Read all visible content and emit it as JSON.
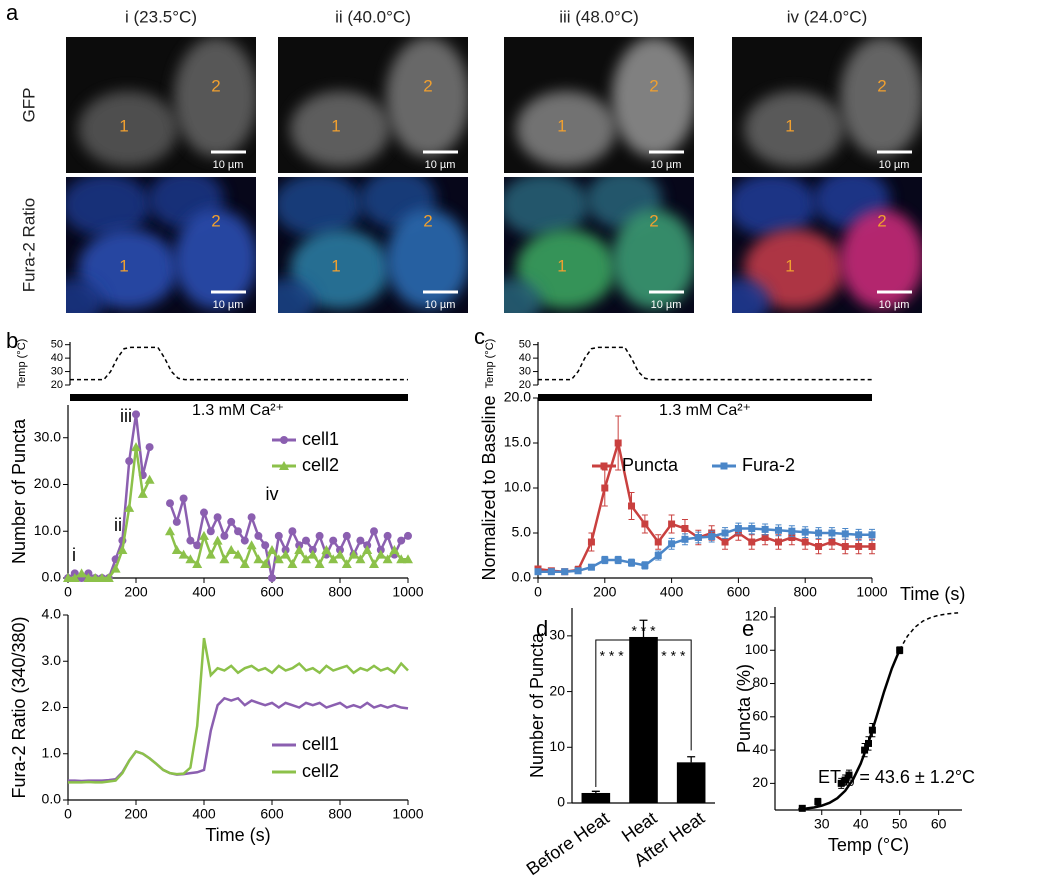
{
  "panel_labels": [
    "a",
    "b",
    "c",
    "d",
    "e"
  ],
  "panel_a": {
    "columns": [
      "i (23.5°C)",
      "ii (40.0°C)",
      "iii (48.0°C)",
      "iv (24.0°C)"
    ],
    "rows": [
      "GFP",
      "Fura-2 Ratio"
    ],
    "cells": [
      "1",
      "2"
    ],
    "scale_bar": "10 µm"
  },
  "chart_data": [
    {
      "type": "line",
      "ylabel": "Temp (°C)",
      "annotation": "1.3 mM Ca²⁺",
      "x": [
        0,
        100,
        120,
        140,
        160,
        180,
        260,
        280,
        300,
        320,
        340,
        1000
      ],
      "xlim": [
        0,
        1000
      ],
      "ylim": [
        20,
        52
      ],
      "yticks": [
        20,
        30,
        40,
        50
      ],
      "series": [
        {
          "color": "#000000",
          "dash": true,
          "values": [
            24,
            24,
            30,
            40,
            47,
            48,
            48,
            40,
            30,
            25,
            24,
            24
          ]
        }
      ]
    },
    {
      "type": "line",
      "ylabel": "Number of Puncta",
      "legend": "upper right",
      "annotations": [
        "i",
        "ii",
        "iii",
        "iv"
      ],
      "x": [
        0,
        20,
        40,
        60,
        80,
        100,
        120,
        140,
        160,
        180,
        200,
        220,
        240,
        260,
        280,
        300,
        320,
        340,
        360,
        380,
        400,
        420,
        440,
        460,
        480,
        500,
        520,
        540,
        560,
        580,
        600,
        620,
        640,
        660,
        680,
        700,
        720,
        740,
        760,
        780,
        800,
        820,
        840,
        860,
        880,
        900,
        920,
        940,
        960,
        980,
        1000
      ],
      "xlim": [
        0,
        1000
      ],
      "ylim": [
        0,
        37
      ],
      "xticks": [
        0,
        200,
        400,
        600,
        800,
        1000
      ],
      "yticks": [
        {
          "value": 0,
          "label": "0.0"
        },
        {
          "value": 10,
          "label": "10.0"
        },
        {
          "value": 20,
          "label": "20.0"
        },
        {
          "value": 30,
          "label": "30.0"
        }
      ],
      "series": [
        {
          "name": "cell1",
          "color": "#8b5fb0",
          "marker": "circle",
          "values": [
            0,
            1,
            0,
            1,
            0,
            0,
            0,
            4,
            8,
            25,
            35,
            22,
            28,
            null,
            null,
            16,
            12,
            17,
            8,
            7,
            14,
            10,
            13,
            9,
            12,
            10,
            8,
            13,
            9,
            7,
            0,
            9,
            6,
            10,
            7,
            8,
            6,
            9,
            5,
            8,
            6,
            9,
            5,
            8,
            7,
            10,
            6,
            9,
            5,
            8,
            9
          ]
        },
        {
          "name": "cell2",
          "color": "#8cc14a",
          "marker": "triangle",
          "values": [
            0,
            0,
            1,
            0,
            0,
            0,
            0,
            2,
            6,
            15,
            28,
            18,
            21,
            null,
            null,
            10,
            6,
            5,
            4,
            3,
            9,
            5,
            8,
            4,
            6,
            5,
            3,
            7,
            4,
            3,
            6,
            4,
            5,
            3,
            6,
            4,
            5,
            3,
            6,
            4,
            5,
            3,
            5,
            4,
            6,
            3,
            5,
            4,
            6,
            4,
            4
          ]
        }
      ]
    },
    {
      "type": "line",
      "ylabel": "Fura-2 Ratio (340/380)",
      "xlabel": "Time (s)",
      "legend": "lower right",
      "x": [
        0,
        20,
        40,
        60,
        80,
        100,
        120,
        140,
        160,
        180,
        200,
        220,
        240,
        260,
        280,
        300,
        320,
        340,
        360,
        380,
        400,
        420,
        440,
        460,
        480,
        500,
        520,
        540,
        560,
        580,
        600,
        620,
        640,
        660,
        680,
        700,
        720,
        740,
        760,
        780,
        800,
        820,
        840,
        860,
        880,
        900,
        920,
        940,
        960,
        980,
        1000
      ],
      "xlim": [
        0,
        1000
      ],
      "ylim": [
        0,
        4
      ],
      "xticks": [
        0,
        200,
        400,
        600,
        800,
        1000
      ],
      "yticks": [
        {
          "value": 0,
          "label": "0.0"
        },
        {
          "value": 1,
          "label": "1.0"
        },
        {
          "value": 2,
          "label": "2.0"
        },
        {
          "value": 3,
          "label": "3.0"
        },
        {
          "value": 4,
          "label": "4.0"
        }
      ],
      "series": [
        {
          "name": "cell1",
          "color": "#8b5fb0",
          "values": [
            0.42,
            0.42,
            0.41,
            0.42,
            0.42,
            0.42,
            0.43,
            0.45,
            0.6,
            0.85,
            1.05,
            1.0,
            0.9,
            0.78,
            0.65,
            0.58,
            0.55,
            0.56,
            0.58,
            0.6,
            0.65,
            1.5,
            2.05,
            2.2,
            2.15,
            2.2,
            2.05,
            2.15,
            2.1,
            2.05,
            2.1,
            2.0,
            2.1,
            2.05,
            2.0,
            2.1,
            2.05,
            2.1,
            2.0,
            2.05,
            2.1,
            2.0,
            2.05,
            2.0,
            2.1,
            2.0,
            2.05,
            2.0,
            2.05,
            2.0,
            1.98
          ]
        },
        {
          "name": "cell2",
          "color": "#8cc14a",
          "values": [
            0.38,
            0.38,
            0.38,
            0.39,
            0.38,
            0.38,
            0.4,
            0.42,
            0.58,
            0.85,
            1.05,
            1.0,
            0.9,
            0.78,
            0.65,
            0.58,
            0.56,
            0.57,
            0.7,
            1.6,
            3.5,
            2.7,
            2.85,
            2.8,
            2.9,
            2.75,
            2.85,
            2.9,
            2.8,
            2.85,
            2.75,
            2.9,
            2.8,
            2.85,
            2.95,
            2.8,
            2.85,
            2.75,
            2.9,
            2.8,
            2.85,
            2.9,
            2.75,
            2.85,
            2.8,
            2.9,
            2.8,
            2.85,
            2.75,
            2.95,
            2.8
          ]
        }
      ]
    },
    {
      "type": "line",
      "ylabel": "Temp (°C)",
      "annotation": "1.3 mM Ca²⁺",
      "x": [
        0,
        100,
        120,
        140,
        160,
        180,
        260,
        280,
        300,
        320,
        340,
        1000
      ],
      "xlim": [
        0,
        1000
      ],
      "ylim": [
        20,
        52
      ],
      "yticks": [
        20,
        30,
        40,
        50
      ],
      "series": [
        {
          "color": "#000000",
          "dash": true,
          "values": [
            24,
            24,
            30,
            40,
            47,
            48,
            48,
            40,
            30,
            25,
            24,
            24
          ]
        }
      ]
    },
    {
      "type": "line",
      "ylabel": "Normalized to Baseline",
      "xlabel": "Time (s)",
      "legend": "upper right",
      "x": [
        0,
        40,
        80,
        120,
        160,
        200,
        240,
        280,
        320,
        360,
        400,
        440,
        480,
        520,
        560,
        600,
        640,
        680,
        720,
        760,
        800,
        840,
        880,
        920,
        960,
        1000
      ],
      "xlim": [
        0,
        1000
      ],
      "ylim": [
        0,
        20
      ],
      "xticks": [
        0,
        200,
        400,
        600,
        800,
        1000
      ],
      "yticks": [
        {
          "value": 0,
          "label": "0.0"
        },
        {
          "value": 5,
          "label": "5.0"
        },
        {
          "value": 10,
          "label": "10.0"
        },
        {
          "value": 15,
          "label": "15.0"
        },
        {
          "value": 20,
          "label": "20.0"
        }
      ],
      "series": [
        {
          "name": "Puncta",
          "color": "#c9403f",
          "marker": "square",
          "values": [
            1,
            0.8,
            0.7,
            0.9,
            4,
            10,
            15,
            8,
            6,
            4,
            6,
            5.5,
            4.5,
            5,
            4,
            5,
            4,
            4.5,
            4,
            4.5,
            4,
            3.5,
            4,
            3.5,
            3.5,
            3.5
          ],
          "errors": [
            0.3,
            0.3,
            0.3,
            0.4,
            1,
            2,
            3,
            1.5,
            1,
            0.8,
            1,
            1,
            0.8,
            0.8,
            0.8,
            0.8,
            0.8,
            0.8,
            0.8,
            0.8,
            0.8,
            0.8,
            0.8,
            0.8,
            0.8,
            0.8
          ]
        },
        {
          "name": "Fura-2",
          "color": "#4a86c8",
          "marker": "square",
          "values": [
            0.7,
            0.7,
            0.7,
            0.8,
            1.2,
            2,
            2,
            1.7,
            1.4,
            2.5,
            3.8,
            4.3,
            4.5,
            4.6,
            5,
            5.5,
            5.5,
            5.4,
            5.3,
            5.2,
            5.1,
            5,
            5,
            4.9,
            4.8,
            4.8
          ],
          "errors": [
            0.2,
            0.2,
            0.2,
            0.2,
            0.3,
            0.4,
            0.4,
            0.4,
            0.4,
            0.5,
            0.6,
            0.6,
            0.6,
            0.6,
            0.6,
            0.6,
            0.6,
            0.6,
            0.6,
            0.6,
            0.6,
            0.6,
            0.6,
            0.6,
            0.6,
            0.6
          ]
        }
      ]
    },
    {
      "type": "bar",
      "ylabel": "Number of Puncta",
      "color": "#000000",
      "annotations": [
        "* * *",
        "* * *",
        "* * *"
      ],
      "categories": [
        "Before Heat",
        "Heat",
        "After Heat"
      ],
      "values": [
        1.8,
        29.8,
        7.3
      ],
      "errors": [
        0.3,
        3,
        1
      ],
      "ylim": [
        0,
        35
      ],
      "yticks": [
        0,
        10,
        20,
        30
      ]
    },
    {
      "type": "scatter",
      "ylabel": "Puncta (%)",
      "xlabel": "Temp (°C)",
      "annotation": [
        "ET",
        "50",
        "= 43.6 ± 1.2°C"
      ],
      "xlim": [
        18,
        66
      ],
      "ylim": [
        4,
        126
      ],
      "xticks": [
        30,
        40,
        50,
        60
      ],
      "yticks": [
        20,
        40,
        60,
        80,
        100,
        120
      ],
      "series": [
        {
          "color": "#000000",
          "marker": "square",
          "line": false,
          "x": [
            25,
            29,
            35,
            36,
            37,
            41,
            42,
            43,
            50
          ],
          "values": [
            5,
            9,
            20,
            22,
            25,
            40,
            44,
            52,
            100
          ],
          "errors": [
            1,
            2,
            3,
            3,
            3,
            4,
            4,
            4,
            2
          ]
        },
        {
          "color": "#000000",
          "x": [
            24,
            26,
            28,
            30,
            32,
            34,
            36,
            38,
            40,
            42,
            44,
            46,
            48,
            50
          ],
          "values": [
            4.5,
            4.9,
            5.5,
            6.6,
            8.3,
            11.1,
            15.5,
            22.2,
            31.9,
            44.6,
            59.6,
            75.1,
            89.1,
            100.3
          ]
        },
        {
          "color": "#000000",
          "dash": true,
          "x": [
            50,
            52,
            54,
            56,
            58,
            60,
            62,
            64,
            65
          ],
          "values": [
            100.3,
            108.5,
            114,
            117.6,
            119.7,
            121,
            121.8,
            122.3,
            122.5
          ]
        }
      ]
    }
  ]
}
